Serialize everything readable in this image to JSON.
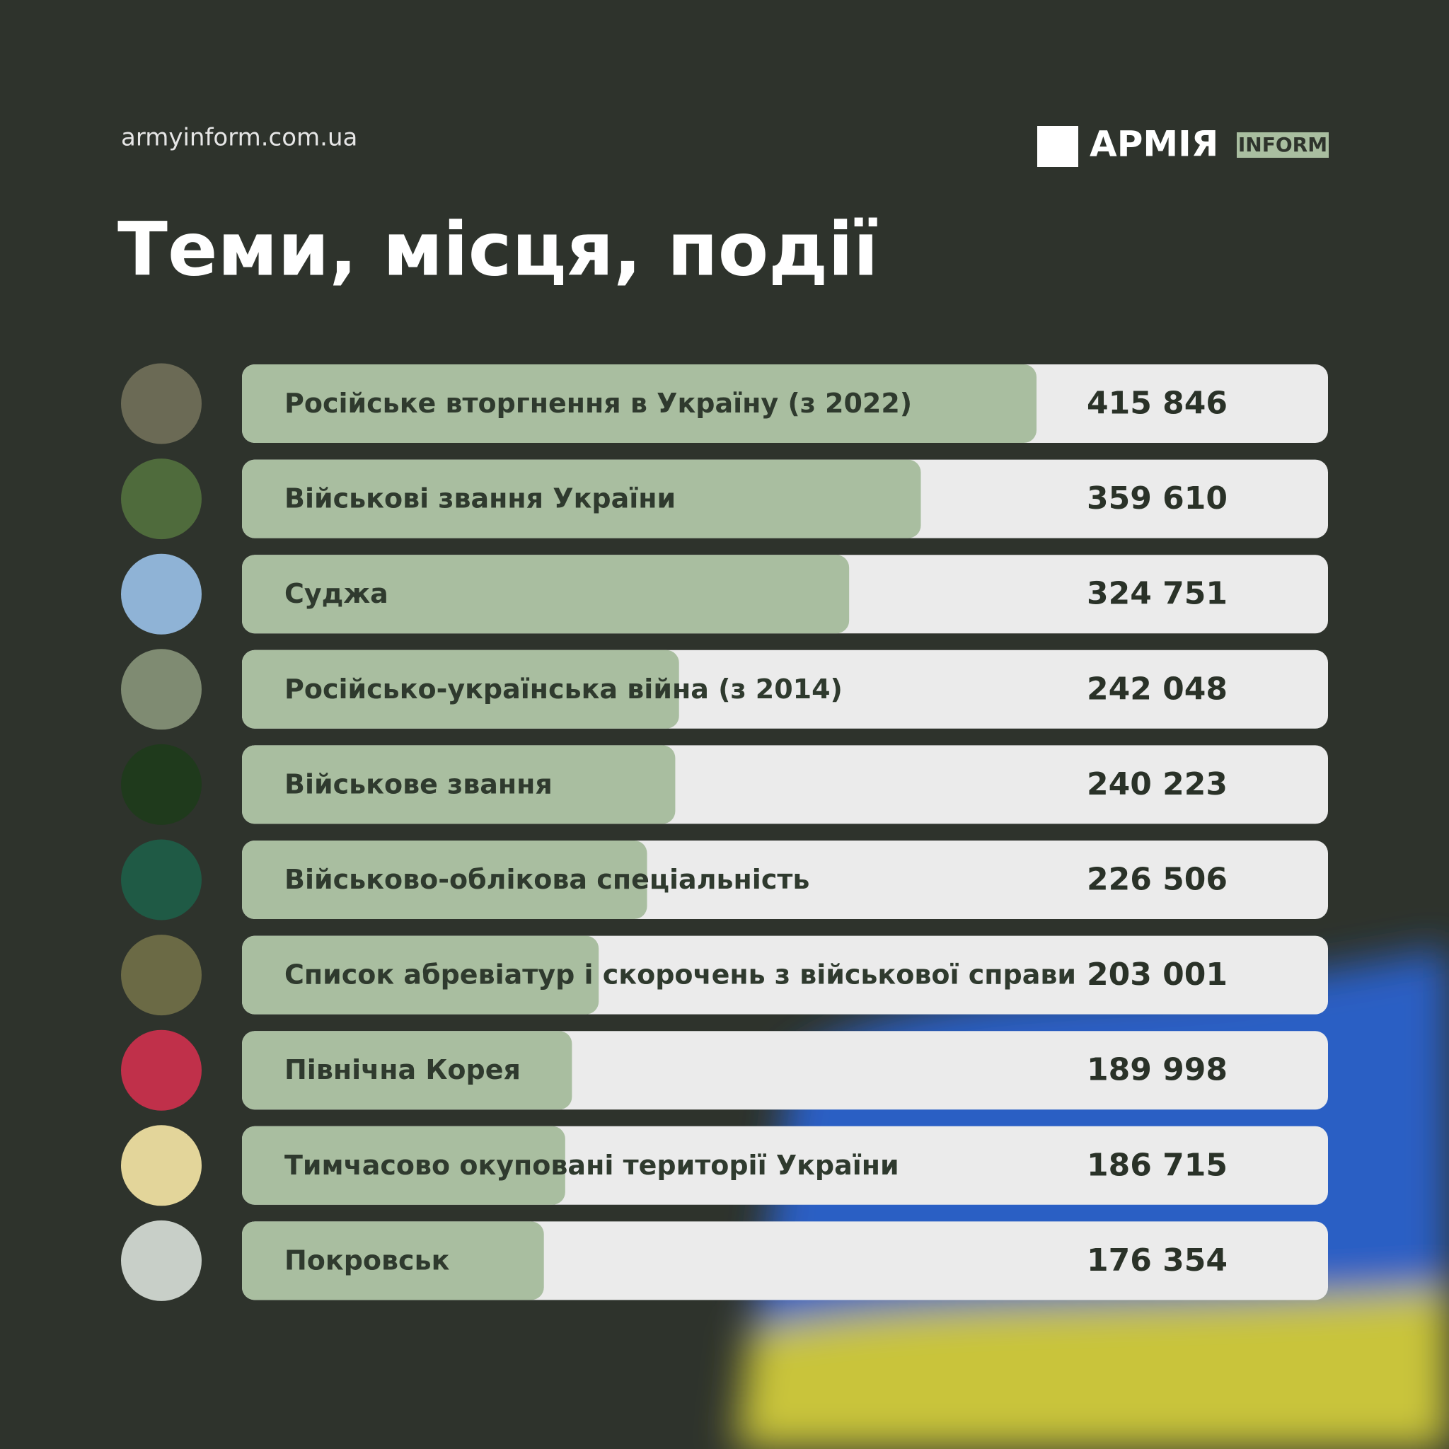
{
  "header": {
    "site": "armyinform.com.ua",
    "logo": "АРМІЯ",
    "logo_tag": "INFORM"
  },
  "chart_data": {
    "type": "bar",
    "orientation": "horizontal",
    "title": "Теми, місця, події",
    "categories": [
      "Російське вторгнення в Україну (з 2022)",
      "Військові звання України",
      "Суджа",
      "Російсько-українська війна (з 2014)",
      "Військове звання",
      "Військово-облікова спеціальність",
      "Список абревіатур і скорочень з військової справи",
      "Північна Корея",
      "Тимчасово окуповані території України",
      "Покровськ"
    ],
    "values": [
      415846,
      359610,
      324751,
      242048,
      240223,
      226506,
      203001,
      189998,
      186715,
      176354
    ],
    "value_labels": [
      "415 846",
      "359 610",
      "324 751",
      "242 048",
      "240 223",
      "226 506",
      "203 001",
      "189 998",
      "186 715",
      "176 354"
    ],
    "color": "#a9bea0"
  }
}
